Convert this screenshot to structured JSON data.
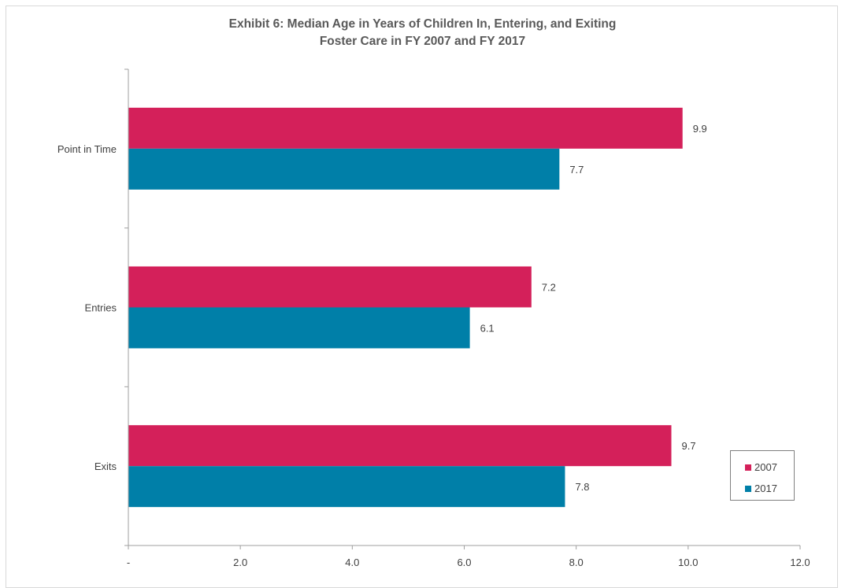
{
  "chart_data": {
    "type": "bar",
    "orientation": "horizontal",
    "title_line1": "Exhibit 6: Median Age in Years of Children In, Entering, and Exiting",
    "title_line2": "Foster Care in FY 2007 and FY 2017",
    "categories": [
      "Point in Time",
      "Entries",
      "Exits"
    ],
    "series": [
      {
        "name": "2007",
        "color": "#d4205a",
        "values": [
          9.9,
          7.2,
          9.7
        ],
        "labels": [
          "9.9",
          "7.2",
          "9.7"
        ]
      },
      {
        "name": "2017",
        "color": "#007fa8",
        "values": [
          7.7,
          6.1,
          7.8
        ],
        "labels": [
          "7.7",
          "6.1",
          "7.8"
        ]
      }
    ],
    "xlim": [
      0,
      12
    ],
    "xticks": [
      0,
      2,
      4,
      6,
      8,
      10,
      12
    ],
    "xtick_labels": [
      "-",
      "2.0",
      "4.0",
      "6.0",
      "8.0",
      "10.0",
      "12.0"
    ],
    "legend_position": "bottom-right",
    "grid": false
  }
}
